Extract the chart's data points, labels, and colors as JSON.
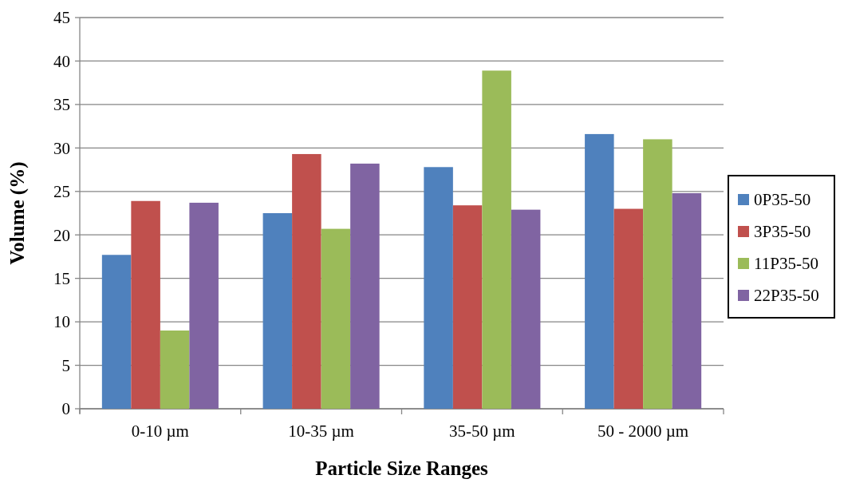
{
  "chart_data": {
    "type": "bar",
    "xlabel": "Particle Size Ranges",
    "ylabel": "Volume (%)",
    "categories": [
      "0-10 µm",
      "10-35 µm",
      "35-50 µm",
      "50 - 2000 µm"
    ],
    "series": [
      {
        "name": "0P35-50",
        "color": "#4f81bd",
        "values": [
          17.7,
          22.5,
          27.8,
          31.6
        ]
      },
      {
        "name": "3P35-50",
        "color": "#c0504d",
        "values": [
          23.9,
          29.3,
          23.4,
          23.0
        ]
      },
      {
        "name": "11P35-50",
        "color": "#9bbb59",
        "values": [
          9.0,
          20.7,
          38.9,
          31.0
        ]
      },
      {
        "name": "22P35-50",
        "color": "#8064a2",
        "values": [
          23.7,
          28.2,
          22.9,
          24.8
        ]
      }
    ],
    "ylim": [
      0,
      45
    ],
    "yticks": [
      0,
      5,
      10,
      15,
      20,
      25,
      30,
      35,
      40,
      45
    ],
    "grid": "y",
    "legend": "right"
  }
}
